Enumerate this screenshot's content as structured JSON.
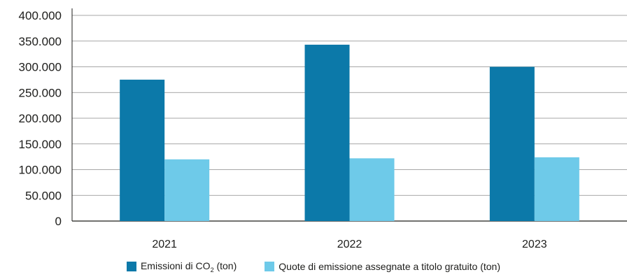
{
  "chart_data": {
    "type": "bar",
    "categories": [
      "2021",
      "2022",
      "2023"
    ],
    "series": [
      {
        "name": "Emissioni di CO₂ (ton)",
        "values": [
          275000,
          343000,
          300000
        ],
        "color": "#0c79a9"
      },
      {
        "name": "Quote di emissione assegnate a titolo gratuito (ton)",
        "values": [
          120000,
          122000,
          124000
        ],
        "color": "#6ecae9"
      }
    ],
    "yticks": [
      "0",
      "50.000",
      "100.000",
      "150.000",
      "200.000",
      "250.000",
      "300.000",
      "350.000",
      "400.000"
    ],
    "ylim": [
      0,
      400000
    ],
    "grid": true,
    "legend_position": "bottom"
  },
  "legend": {
    "series1_prefix": "Emissioni di CO",
    "series1_sub": "2",
    "series1_suffix": " (ton)",
    "series2": "Quote di emissione assegnate a titolo gratuito (ton)"
  }
}
